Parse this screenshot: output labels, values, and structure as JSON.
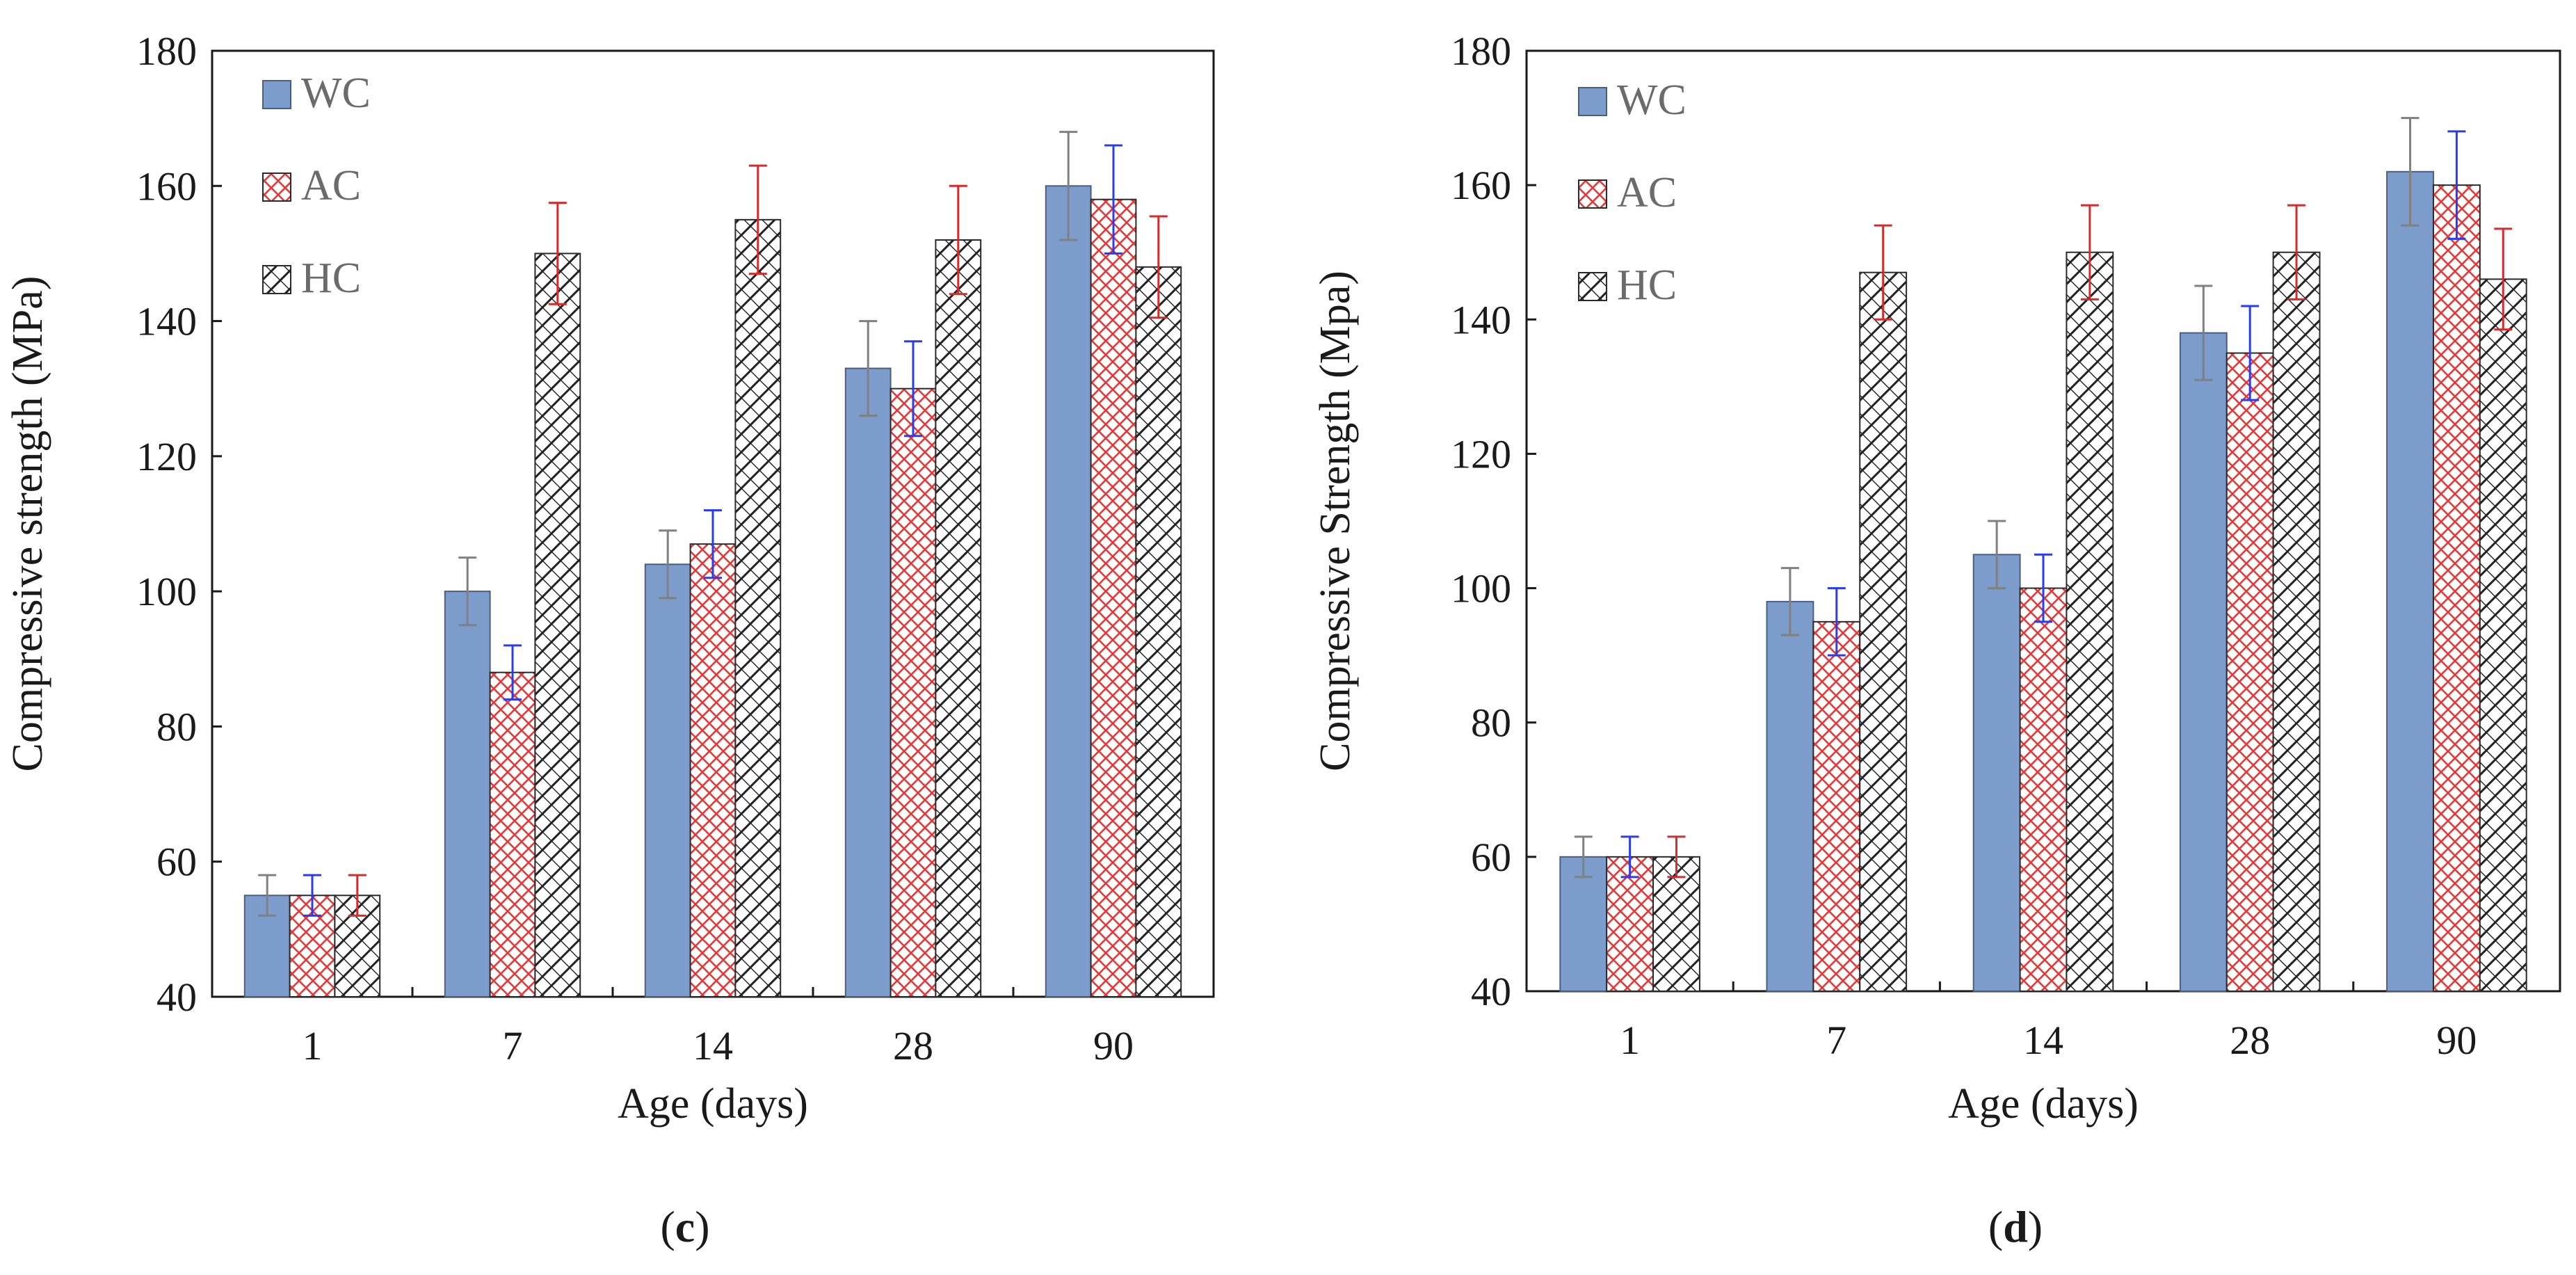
{
  "chart_data": [
    {
      "type": "bar",
      "panel_label": "c",
      "categories": [
        "1",
        "7",
        "14",
        "28",
        "90"
      ],
      "xlabel": "Age (days)",
      "ylabel": "Compressive strength (MPa)",
      "ylim": [
        40,
        180
      ],
      "yticks": [
        40,
        60,
        80,
        100,
        120,
        140,
        160,
        180
      ],
      "legend_position": "top-left",
      "series": [
        {
          "name": "WC",
          "values": [
            55,
            100,
            104,
            133,
            160
          ],
          "errors": [
            3,
            5,
            5,
            7,
            8
          ],
          "color": "#7c9ccb",
          "pattern": "solid",
          "error_color": "#808080"
        },
        {
          "name": "AC",
          "values": [
            55,
            88,
            107,
            130,
            158
          ],
          "errors": [
            3,
            4,
            5,
            7,
            8
          ],
          "color": "#e03a3a",
          "pattern": "crosshatch",
          "error_color": "#2a3cf0"
        },
        {
          "name": "HC",
          "values": [
            55,
            150,
            155,
            152,
            148
          ],
          "errors": [
            3,
            7.5,
            8,
            8,
            7.5
          ],
          "color": "#222222",
          "pattern": "diagonal-hatch",
          "error_color": "#d42b2b"
        }
      ]
    },
    {
      "type": "bar",
      "panel_label": "d",
      "categories": [
        "1",
        "7",
        "14",
        "28",
        "90"
      ],
      "xlabel": "Age (days)",
      "ylabel": "Compressive Strength (Mpa)",
      "ylim": [
        40,
        180
      ],
      "yticks": [
        40,
        60,
        80,
        100,
        120,
        140,
        160,
        180
      ],
      "legend_position": "top-left",
      "series": [
        {
          "name": "WC",
          "values": [
            60,
            98,
            105,
            138,
            162
          ],
          "errors": [
            3,
            5,
            5,
            7,
            8
          ],
          "color": "#7c9ccb",
          "pattern": "solid",
          "error_color": "#808080"
        },
        {
          "name": "AC",
          "values": [
            60,
            95,
            100,
            135,
            160
          ],
          "errors": [
            3,
            5,
            5,
            7,
            8
          ],
          "color": "#e03a3a",
          "pattern": "crosshatch",
          "error_color": "#2a3cf0"
        },
        {
          "name": "HC",
          "values": [
            60,
            147,
            150,
            150,
            146
          ],
          "errors": [
            3,
            7,
            7,
            7,
            7.5
          ],
          "color": "#222222",
          "pattern": "diagonal-hatch",
          "error_color": "#d42b2b"
        }
      ]
    }
  ]
}
